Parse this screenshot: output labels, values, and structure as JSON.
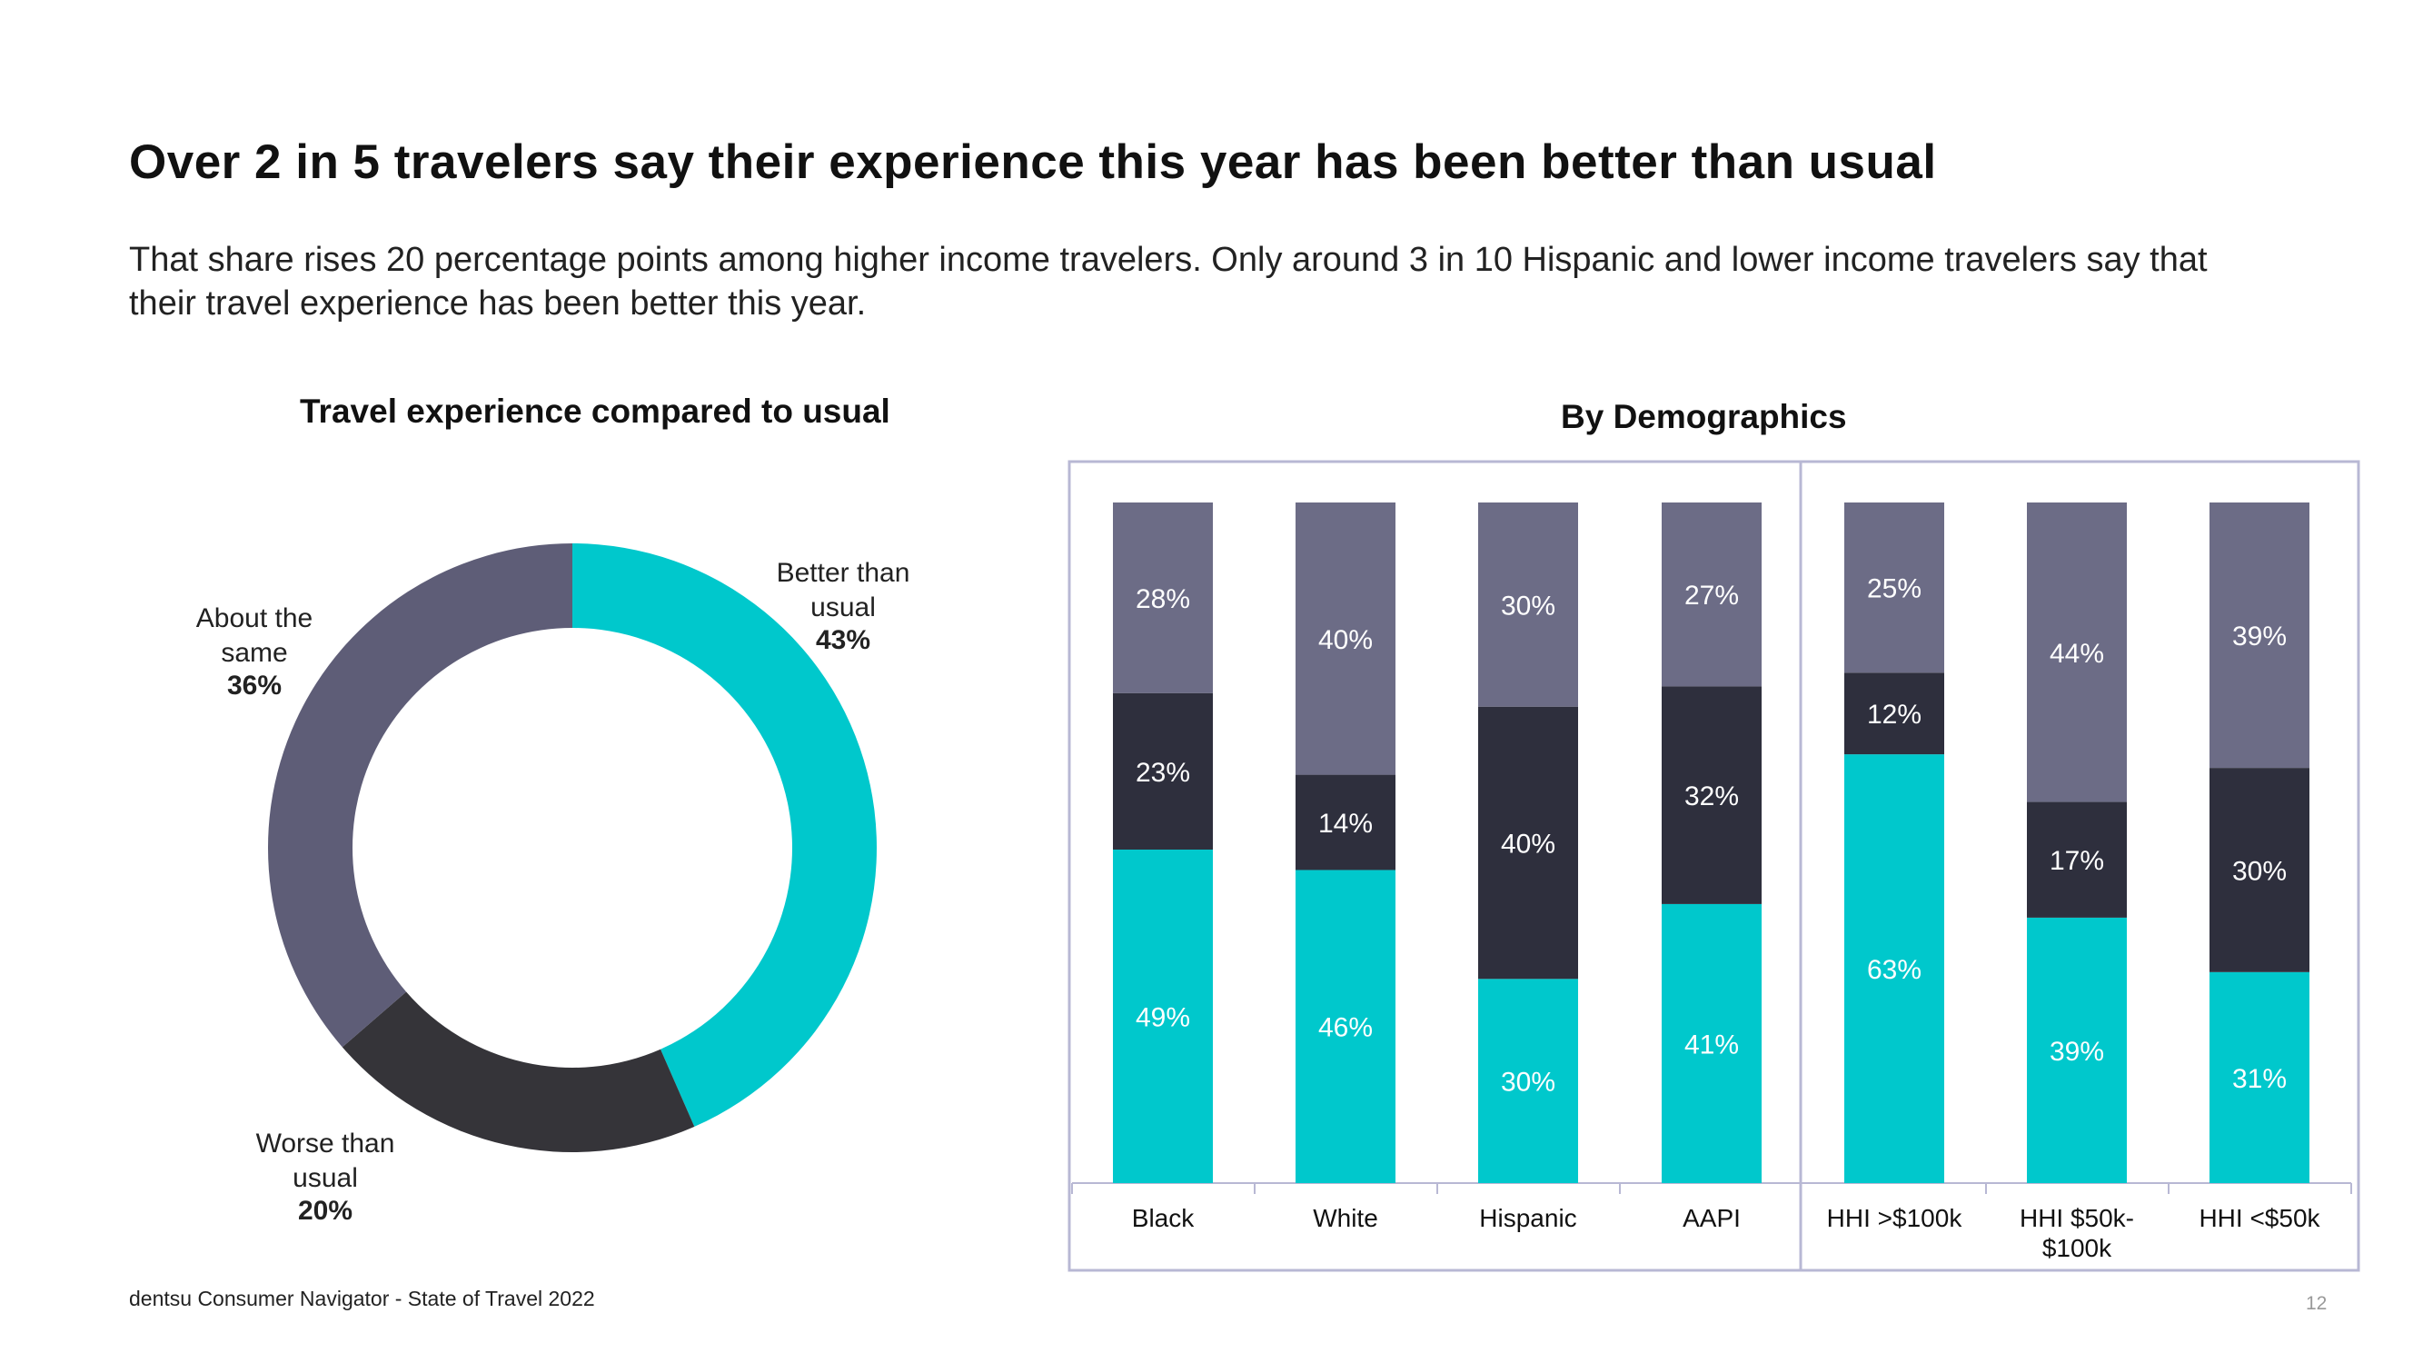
{
  "page": {
    "headline": "Over 2 in 5 travelers say their experience this year has been better than usual",
    "subhead": "That share rises 20 percentage points among higher income travelers. Only around 3 in 10 Hispanic and lower income travelers say that their travel experience has been better this year.",
    "footer": "dentsu Consumer Navigator - State of Travel 2022",
    "page_number": "12"
  },
  "colors": {
    "better": "#00C8CC",
    "worse": "#2E2F3D",
    "same": "#6C6C86",
    "donut_same": "#5E5D77",
    "donut_worse": "#353439",
    "frame": "#B8B8D4"
  },
  "chart_data": [
    {
      "type": "pie",
      "title": "Travel experience compared to usual",
      "slices": [
        {
          "label_lines": [
            "Better than",
            "usual"
          ],
          "value": 43,
          "value_label": "43%",
          "color_key": "better"
        },
        {
          "label_lines": [
            "Worse than",
            "usual"
          ],
          "value": 20,
          "value_label": "20%",
          "color_key": "donut_worse"
        },
        {
          "label_lines": [
            "About the",
            "same"
          ],
          "value": 36,
          "value_label": "36%",
          "color_key": "donut_same"
        }
      ]
    },
    {
      "type": "bar",
      "stacked": true,
      "title": "By Demographics",
      "categories": [
        [
          "Black"
        ],
        [
          "White"
        ],
        [
          "Hispanic"
        ],
        [
          "AAPI"
        ],
        [
          "HHI >$100k"
        ],
        [
          "HHI $50k-",
          "$100k"
        ],
        [
          "HHI <$50k"
        ]
      ],
      "series": [
        {
          "name": "Better than usual",
          "color_key": "better",
          "values": [
            49,
            46,
            30,
            41,
            63,
            39,
            31
          ]
        },
        {
          "name": "Worse than usual",
          "color_key": "worse",
          "values": [
            23,
            14,
            40,
            32,
            12,
            17,
            30
          ]
        },
        {
          "name": "About the same",
          "color_key": "same",
          "values": [
            28,
            40,
            30,
            27,
            25,
            44,
            39
          ]
        }
      ],
      "ylim": [
        0,
        100
      ],
      "groups": [
        [
          "Black",
          "White",
          "Hispanic",
          "AAPI"
        ],
        [
          "HHI >$100k",
          "HHI $50k-$100k",
          "HHI <$50k"
        ]
      ]
    }
  ]
}
